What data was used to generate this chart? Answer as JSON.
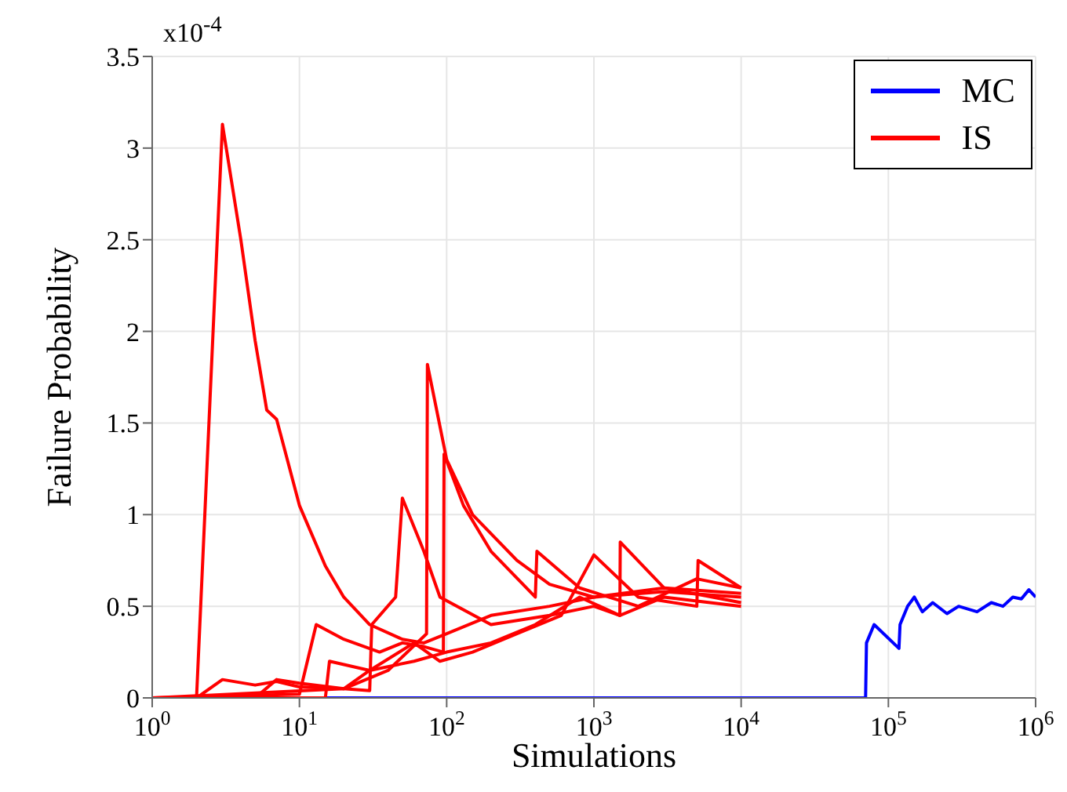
{
  "chart_data": {
    "type": "line",
    "xlabel": "Simulations",
    "ylabel": "Failure Probability",
    "annotations": [
      "x10$^{-4}$"
    ],
    "log": "x",
    "grid": true,
    "legend": "top right",
    "marker": "none",
    "line_style": "solid",
    "xlim": [
      1,
      1000000
    ],
    "xticks": [
      {
        "value": 1,
        "label": "10$^{0}$"
      },
      {
        "value": 10,
        "label": "10$^{1}$"
      },
      {
        "value": 100,
        "label": "10$^{2}$"
      },
      {
        "value": 1000,
        "label": "10$^{3}$"
      },
      {
        "value": 10000,
        "label": "10$^{4}$"
      },
      {
        "value": 100000,
        "label": "10$^{5}$"
      },
      {
        "value": 1000000,
        "label": "10$^{6}$"
      }
    ],
    "ylim": [
      0,
      3.5
    ],
    "yticks": [
      0,
      0.5,
      1,
      1.5,
      2,
      2.5,
      3,
      3.5
    ],
    "series": [
      {
        "name": "MC",
        "color": "#0000ff",
        "x": [
          1,
          70000,
          71000,
          80000,
          118000,
          120000,
          135000,
          150000,
          170000,
          200000,
          250000,
          300000,
          400000,
          500000,
          600000,
          700000,
          800000,
          900000,
          1000000
        ],
        "values": [
          0,
          0,
          0.3,
          0.4,
          0.27,
          0.4,
          0.5,
          0.55,
          0.47,
          0.52,
          0.46,
          0.5,
          0.47,
          0.52,
          0.5,
          0.55,
          0.54,
          0.59,
          0.55
        ]
      },
      {
        "name": "IS",
        "color": "#ff0000",
        "x": [
          1,
          2,
          3,
          4,
          5,
          6,
          7,
          10,
          15,
          20,
          30,
          50,
          70,
          100,
          200,
          500,
          1000,
          3000,
          10000
        ],
        "values": [
          0,
          0,
          3.13,
          2.5,
          1.95,
          1.57,
          1.52,
          1.05,
          0.72,
          0.55,
          0.4,
          0.32,
          0.3,
          0.35,
          0.45,
          0.5,
          0.55,
          0.58,
          0.55
        ]
      },
      {
        "color": "#ff0000",
        "x": [
          1,
          2,
          3,
          5,
          7,
          10,
          20,
          40,
          73,
          74,
          100,
          150,
          300,
          500,
          1000,
          3000,
          10000
        ],
        "values": [
          0,
          0,
          0.1,
          0.07,
          0.09,
          0.06,
          0.05,
          0.15,
          0.35,
          1.82,
          1.3,
          1.0,
          0.75,
          0.62,
          0.55,
          0.6,
          0.57
        ]
      },
      {
        "color": "#ff0000",
        "x": [
          1,
          10,
          13,
          20,
          35,
          50,
          70,
          95,
          96,
          130,
          200,
          400,
          410,
          800,
          2000,
          5000,
          10000
        ],
        "values": [
          0,
          0.02,
          0.4,
          0.32,
          0.25,
          0.3,
          0.28,
          0.25,
          1.33,
          1.05,
          0.8,
          0.55,
          0.8,
          0.6,
          0.5,
          0.65,
          0.6
        ]
      },
      {
        "color": "#ff0000",
        "x": [
          1,
          5,
          7,
          10,
          20,
          30,
          31,
          45,
          50,
          70,
          90,
          200,
          500,
          1000,
          1500,
          1510,
          3000,
          10000
        ],
        "values": [
          0,
          0,
          0.1,
          0.08,
          0.05,
          0.04,
          0.4,
          0.55,
          1.09,
          0.8,
          0.55,
          0.4,
          0.45,
          0.5,
          0.45,
          0.85,
          0.6,
          0.52
        ]
      },
      {
        "color": "#ff0000",
        "x": [
          1,
          15,
          16,
          30,
          60,
          90,
          150,
          300,
          600,
          1000,
          2000,
          5000,
          5100,
          10000
        ],
        "values": [
          0,
          0,
          0.2,
          0.15,
          0.3,
          0.2,
          0.25,
          0.35,
          0.45,
          0.78,
          0.55,
          0.5,
          0.75,
          0.6
        ]
      },
      {
        "color": "#ff0000",
        "x": [
          1,
          20,
          30,
          60,
          100,
          200,
          400,
          800,
          1500,
          3000,
          10000
        ],
        "values": [
          0,
          0.05,
          0.15,
          0.2,
          0.25,
          0.3,
          0.4,
          0.55,
          0.45,
          0.55,
          0.5
        ]
      }
    ]
  }
}
